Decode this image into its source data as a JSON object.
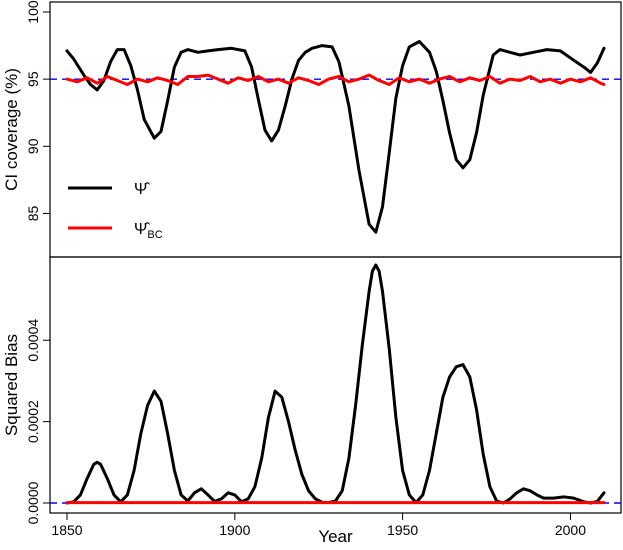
{
  "chart_data": [
    {
      "type": "line",
      "title": "",
      "xlabel": "",
      "ylabel": "CI coverage (%)",
      "xlim": [
        1850,
        2010
      ],
      "ylim": [
        82.5,
        100
      ],
      "yticks": [
        85,
        90,
        95,
        100
      ],
      "ytick_labels": [
        "85",
        "90",
        "95",
        "100"
      ],
      "reference_line": {
        "y": 95,
        "color": "#0000ff",
        "style": "dashed"
      },
      "legend": {
        "position": "left",
        "entries": [
          {
            "label": "Ψ̂",
            "color": "#000000"
          },
          {
            "label": "Ψ̂BC",
            "color": "#ff0000"
          }
        ]
      },
      "series": [
        {
          "name": "Ψ̂",
          "color": "#000000",
          "x": [
            1850,
            1852,
            1855,
            1857,
            1859,
            1861,
            1863,
            1865,
            1867,
            1869,
            1871,
            1873,
            1876,
            1878,
            1880,
            1882,
            1884,
            1886,
            1889,
            1892,
            1895,
            1899,
            1903,
            1905,
            1907,
            1909,
            1911,
            1913,
            1915,
            1917,
            1919,
            1921,
            1923,
            1926,
            1929,
            1931,
            1934,
            1937,
            1940,
            1942,
            1944,
            1946,
            1948,
            1950,
            1952,
            1955,
            1958,
            1960,
            1962,
            1964,
            1966,
            1968,
            1970,
            1972,
            1974,
            1977,
            1979,
            1982,
            1985,
            1989,
            1993,
            1997,
            2001,
            2004,
            2006,
            2008,
            2010
          ],
          "values": [
            97.1,
            96.5,
            95.3,
            94.6,
            94.2,
            94.9,
            96.3,
            97.2,
            97.2,
            96.0,
            94.2,
            92.0,
            90.6,
            91.1,
            93.4,
            95.9,
            97.0,
            97.2,
            97.0,
            97.1,
            97.2,
            97.3,
            97.1,
            95.9,
            93.5,
            91.2,
            90.4,
            91.2,
            93.0,
            95.0,
            96.4,
            97.0,
            97.3,
            97.5,
            97.4,
            96.3,
            93.0,
            88.2,
            84.2,
            83.6,
            85.5,
            89.5,
            93.6,
            96.0,
            97.4,
            97.8,
            97.0,
            95.6,
            93.4,
            91.0,
            89.0,
            88.4,
            89.0,
            91.0,
            93.8,
            96.8,
            97.2,
            97.0,
            96.8,
            97.0,
            97.2,
            97.1,
            96.4,
            95.9,
            95.5,
            96.2,
            97.3
          ]
        },
        {
          "name": "Ψ̂BC",
          "color": "#ff0000",
          "x": [
            1850,
            1853,
            1856,
            1859,
            1862,
            1865,
            1868,
            1871,
            1874,
            1877,
            1880,
            1883,
            1886,
            1889,
            1892,
            1895,
            1898,
            1901,
            1904,
            1907,
            1910,
            1913,
            1916,
            1919,
            1922,
            1925,
            1928,
            1931,
            1934,
            1937,
            1940,
            1943,
            1946,
            1949,
            1952,
            1955,
            1958,
            1961,
            1964,
            1967,
            1970,
            1973,
            1976,
            1979,
            1982,
            1985,
            1988,
            1991,
            1994,
            1997,
            2000,
            2003,
            2006,
            2009,
            2010
          ],
          "values": [
            95.0,
            94.8,
            95.1,
            94.7,
            95.2,
            94.9,
            94.6,
            95.0,
            94.8,
            95.1,
            94.9,
            94.6,
            95.2,
            95.2,
            95.3,
            95.0,
            94.7,
            95.1,
            94.9,
            95.2,
            94.8,
            95.0,
            94.7,
            95.1,
            94.9,
            94.6,
            95.0,
            95.2,
            94.8,
            95.0,
            95.3,
            94.9,
            94.6,
            95.1,
            94.8,
            95.0,
            94.7,
            95.0,
            95.2,
            94.8,
            95.1,
            94.9,
            95.2,
            94.7,
            95.0,
            94.9,
            95.2,
            94.8,
            95.0,
            94.7,
            95.0,
            94.8,
            95.1,
            94.7,
            94.6
          ]
        }
      ]
    },
    {
      "type": "line",
      "title": "",
      "xlabel": "Year",
      "ylabel": "Squared Bias",
      "xlim": [
        1850,
        2010
      ],
      "ylim": [
        0,
        0.00058
      ],
      "xticks": [
        1850,
        1900,
        1950,
        2000
      ],
      "xtick_labels": [
        "1850",
        "1900",
        "1950",
        "2000"
      ],
      "yticks": [
        0,
        0.0002,
        0.0004
      ],
      "ytick_labels": [
        "0.0000",
        "0.0002",
        "0.0004"
      ],
      "reference_line": {
        "y": 0,
        "color": "#0000ff",
        "style": "dashed"
      },
      "series": [
        {
          "name": "Ψ̂",
          "color": "#000000",
          "x": [
            1850,
            1852,
            1854,
            1856,
            1858,
            1859,
            1860,
            1862,
            1864,
            1866,
            1868,
            1870,
            1872,
            1874,
            1876,
            1878,
            1880,
            1882,
            1884,
            1886,
            1888,
            1890,
            1892,
            1894,
            1896,
            1898,
            1900,
            1902,
            1904,
            1906,
            1908,
            1910,
            1912,
            1914,
            1916,
            1918,
            1920,
            1922,
            1924,
            1926,
            1928,
            1930,
            1932,
            1934,
            1936,
            1938,
            1940,
            1941,
            1942,
            1943,
            1944,
            1946,
            1948,
            1950,
            1952,
            1954,
            1956,
            1958,
            1960,
            1962,
            1964,
            1966,
            1968,
            1970,
            1972,
            1974,
            1976,
            1978,
            1980,
            1982,
            1984,
            1986,
            1988,
            1990,
            1992,
            1995,
            1998,
            2001,
            2004,
            2006,
            2008,
            2010
          ],
          "values": [
            0,
            3e-06,
            2e-05,
            6e-05,
            9.5e-05,
            0.0001,
            9.5e-05,
            6e-05,
            2e-05,
            3e-06,
            2e-05,
            8e-05,
            0.00017,
            0.00024,
            0.000275,
            0.00025,
            0.00017,
            8e-05,
            2e-05,
            5e-06,
            2.5e-05,
            3.5e-05,
            2e-05,
            4e-06,
            1e-05,
            2.5e-05,
            2e-05,
            3e-06,
            1e-05,
            4e-05,
            0.00011,
            0.00021,
            0.000275,
            0.00026,
            0.0002,
            0.00013,
            7e-05,
            3e-05,
            1e-05,
            2e-06,
            1e-06,
            5e-06,
            3e-05,
            0.00011,
            0.00024,
            0.00039,
            0.00052,
            0.00057,
            0.000585,
            0.00057,
            0.00052,
            0.00038,
            0.00021,
            8e-05,
            2e-05,
            1e-06,
            2e-05,
            8e-05,
            0.00017,
            0.00026,
            0.00031,
            0.000335,
            0.00034,
            0.00031,
            0.00023,
            0.00012,
            4e-05,
            5e-06,
            0,
            1e-05,
            2.5e-05,
            3.5e-05,
            3e-05,
            2e-05,
            1.2e-05,
            1.2e-05,
            1.5e-05,
            1.2e-05,
            3e-06,
            0,
            4e-06,
            2.5e-05
          ]
        },
        {
          "name": "Ψ̂BC",
          "color": "#ff0000",
          "x": [
            1850,
            2010
          ],
          "values": [
            1e-06,
            1e-06
          ]
        }
      ]
    }
  ]
}
